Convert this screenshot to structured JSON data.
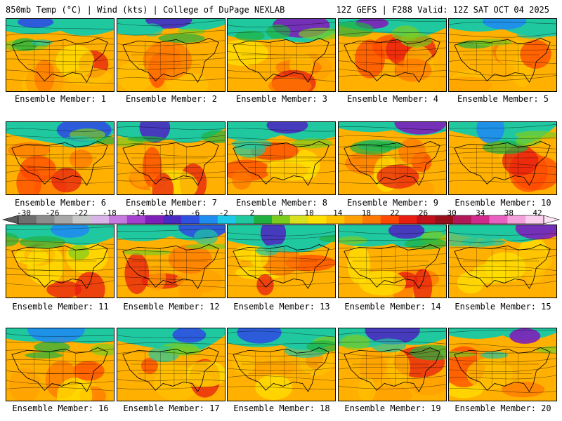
{
  "header": {
    "left": "850mb Temp (°C) | Wind (kts) | College of DuPage NEXLAB",
    "right": "12Z GEFS | F288 Valid: 12Z SAT OCT 04 2025"
  },
  "colorbar": {
    "labels": [
      "-30",
      "-26",
      "-22",
      "-18",
      "-14",
      "-10",
      "-6",
      "-2",
      "2",
      "6",
      "10",
      "14",
      "18",
      "22",
      "26",
      "30",
      "34",
      "38",
      "42"
    ],
    "colors": [
      "#6e6e6e",
      "#8c8c8c",
      "#a8a8a8",
      "#c8c8c8",
      "#d8b4e8",
      "#c77be0",
      "#a540d0",
      "#7d1fb8",
      "#4a2ac0",
      "#2d50e0",
      "#1f8cf0",
      "#1ec8e8",
      "#20c8a0",
      "#20b040",
      "#7ccc20",
      "#d8e020",
      "#ffe000",
      "#ffc000",
      "#ffa000",
      "#ff7800",
      "#ff4800",
      "#e81e10",
      "#c0101a",
      "#96101c",
      "#b01858",
      "#d02a8c",
      "#e860c0",
      "#f4a0dc",
      "#fbd0ee"
    ]
  },
  "members": [
    {
      "label": "Ensemble Member: 1",
      "icon": "jet-map"
    },
    {
      "label": "Ensemble Member: 2",
      "icon": "jet-map"
    },
    {
      "label": "Ensemble Member: 3",
      "icon": "jet-map"
    },
    {
      "label": "Ensemble Member: 4",
      "icon": "jet-map"
    },
    {
      "label": "Ensemble Member: 5",
      "icon": "jet-map"
    },
    {
      "label": "Ensemble Member: 6",
      "icon": "jet-map"
    },
    {
      "label": "Ensemble Member: 7",
      "icon": "jet-map"
    },
    {
      "label": "Ensemble Member: 8",
      "icon": "jet-map"
    },
    {
      "label": "Ensemble Member: 9",
      "icon": "jet-map"
    },
    {
      "label": "Ensemble Member: 10",
      "icon": "jet-map"
    },
    {
      "label": "Ensemble Member: 11",
      "icon": "jet-map"
    },
    {
      "label": "Ensemble Member: 12",
      "icon": "jet-map"
    },
    {
      "label": "Ensemble Member: 13",
      "icon": "jet-map"
    },
    {
      "label": "Ensemble Member: 14",
      "icon": "jet-map"
    },
    {
      "label": "Ensemble Member: 15",
      "icon": "jet-map"
    },
    {
      "label": "Ensemble Member: 16",
      "icon": "jet-map"
    },
    {
      "label": "Ensemble Member: 17",
      "icon": "jet-map"
    },
    {
      "label": "Ensemble Member: 18",
      "icon": "jet-map"
    },
    {
      "label": "Ensemble Member: 19",
      "icon": "jet-map"
    },
    {
      "label": "Ensemble Member: 20",
      "icon": "jet-map"
    }
  ]
}
